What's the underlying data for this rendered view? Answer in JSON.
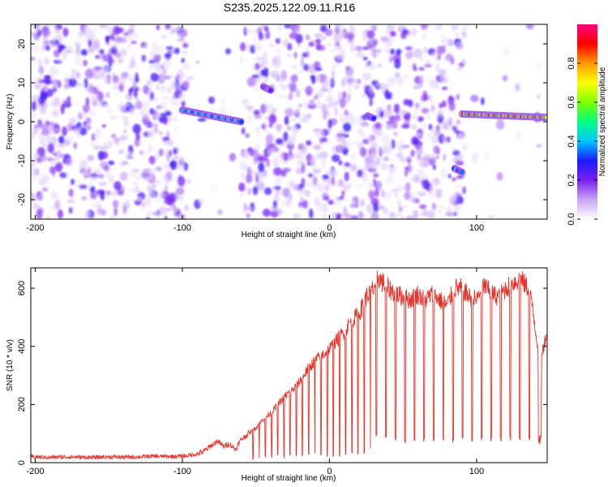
{
  "title": "S235.2025.122.09.11.R16",
  "chart_data": [
    {
      "type": "heatmap",
      "xlabel": "Height of straight line (km)",
      "ylabel": "Frequency (Hz)",
      "xlim": [
        -203,
        148
      ],
      "ylim": [
        -25,
        25
      ],
      "xticks": [
        "-200",
        "-100",
        "0",
        "100"
      ],
      "xtick_values": [
        -200,
        -100,
        0,
        100
      ],
      "yticks": [
        "20",
        "10",
        "0",
        "-10",
        "-20"
      ],
      "ytick_values": [
        20,
        10,
        0,
        -10,
        -20
      ],
      "colorbar": {
        "label": "Normalized spectral amplitude",
        "range": [
          0,
          1
        ],
        "ticks": [
          "0.0",
          "0.2",
          "0.4",
          "0.6",
          "0.8"
        ],
        "tick_values": [
          0.0,
          0.2,
          0.4,
          0.6,
          0.8
        ],
        "colors": [
          "#ffffff",
          "#c9a6f5",
          "#7a1ff0",
          "#1a1aff",
          "#00c8ff",
          "#00ff80",
          "#7fff00",
          "#ffff00",
          "#ff9900",
          "#ff0000",
          "#ff0080"
        ]
      },
      "features": [
        {
          "x_range": [
            -100,
            -60
          ],
          "freq_range": [
            0,
            3
          ],
          "peak_amplitude": 0.5
        },
        {
          "x_range": [
            -45,
            -40
          ],
          "freq_range": [
            6,
            9
          ],
          "peak_amplitude": 0.25
        },
        {
          "x_range": [
            26,
            30
          ],
          "freq_range": [
            -0.5,
            1.5
          ],
          "peak_amplitude": 0.35
        },
        {
          "x_range": [
            85,
            90
          ],
          "freq_range": [
            -15,
            -12
          ],
          "peak_amplitude": 0.4
        },
        {
          "x_range": [
            90,
            148
          ],
          "freq_range": [
            -1,
            2
          ],
          "peak_amplitude": 0.95
        }
      ],
      "sparse_regions": [
        {
          "x_range": [
            -97,
            -60
          ]
        },
        {
          "x_range": [
            92,
            148
          ]
        }
      ]
    },
    {
      "type": "line",
      "xlabel": "Height of straight line (km)",
      "ylabel": "SNR (10 * v/v)",
      "xlim": [
        -203,
        148
      ],
      "ylim": [
        0,
        670
      ],
      "xticks": [
        "-200",
        "-100",
        "0",
        "100"
      ],
      "xtick_values": [
        -200,
        -100,
        0,
        100
      ],
      "yticks": [
        "0",
        "200",
        "400",
        "600"
      ],
      "ytick_values": [
        0,
        200,
        400,
        600
      ],
      "color": "#e8312a",
      "series": [
        {
          "x": [
            -203,
            -190,
            -180,
            -170,
            -160,
            -150,
            -140,
            -130,
            -120,
            -110,
            -100,
            -95,
            -90,
            -85,
            -80,
            -76,
            -72,
            -68,
            -64,
            -60,
            -55,
            -50,
            -45,
            -40,
            -35,
            -30,
            -25,
            -20,
            -15,
            -10,
            -5,
            0,
            5,
            10,
            15,
            20,
            25,
            30,
            33,
            36,
            40,
            45,
            50,
            55,
            60,
            65,
            70,
            75,
            80,
            85,
            90,
            95,
            100,
            105,
            110,
            115,
            120,
            125,
            130,
            135,
            138,
            142,
            145,
            148
          ],
          "y": [
            20,
            18,
            20,
            19,
            18,
            20,
            19,
            20,
            22,
            21,
            22,
            25,
            30,
            40,
            60,
            75,
            55,
            65,
            45,
            80,
            100,
            120,
            150,
            170,
            200,
            230,
            250,
            280,
            320,
            350,
            370,
            390,
            420,
            450,
            490,
            510,
            570,
            600,
            640,
            620,
            600,
            580,
            570,
            560,
            580,
            560,
            580,
            560,
            540,
            600,
            600,
            570,
            560,
            610,
            580,
            570,
            600,
            620,
            630,
            600,
            540,
            380,
            390,
            450
          ]
        }
      ]
    }
  ]
}
